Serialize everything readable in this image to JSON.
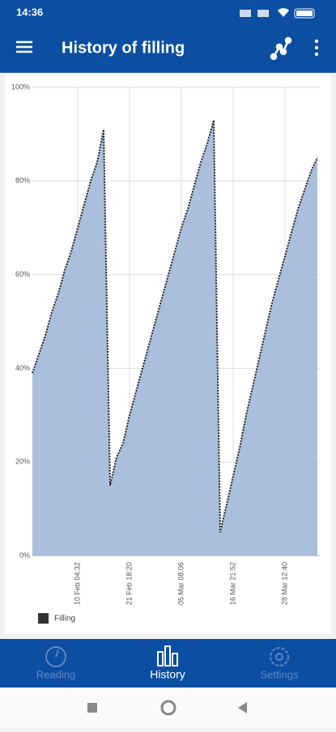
{
  "status_bar": {
    "time": "14:36"
  },
  "app_bar": {
    "title": "History of filling"
  },
  "chart_data": {
    "type": "area",
    "categories": [
      null,
      null,
      null,
      null,
      null,
      null,
      null,
      "10 Feb 04:32",
      null,
      null,
      null,
      null,
      null,
      null,
      null,
      "21 Feb 18:20",
      null,
      null,
      null,
      null,
      null,
      null,
      null,
      "05 Mar 08:06",
      null,
      null,
      null,
      null,
      null,
      null,
      null,
      "16 Mar 21:52",
      null,
      null,
      null,
      null,
      null,
      null,
      null,
      "28 Mar 12:40",
      null,
      null,
      null,
      null,
      null
    ],
    "series": [
      {
        "name": "Filling",
        "color": "#a9bfdc",
        "values": [
          39,
          43,
          47,
          52,
          56,
          61,
          65,
          70,
          75,
          80,
          84,
          91,
          15,
          21,
          24,
          30,
          35,
          40,
          45,
          50,
          55,
          60,
          65,
          70,
          74,
          79,
          84,
          88,
          93,
          5,
          11,
          17,
          23,
          30,
          36,
          42,
          48,
          54,
          59,
          64,
          69,
          74,
          78,
          82,
          85
        ]
      }
    ],
    "ylim": [
      0,
      100
    ],
    "yticks": [
      {
        "value": 0,
        "label": "0%"
      },
      {
        "value": 20,
        "label": "20%"
      },
      {
        "value": 40,
        "label": "40%"
      },
      {
        "value": 60,
        "label": "60%"
      },
      {
        "value": 80,
        "label": "80%"
      },
      {
        "value": 100,
        "label": "100%"
      }
    ],
    "grid": true
  },
  "bottom_nav": {
    "items": [
      "Reading",
      "History",
      "Settings"
    ]
  }
}
